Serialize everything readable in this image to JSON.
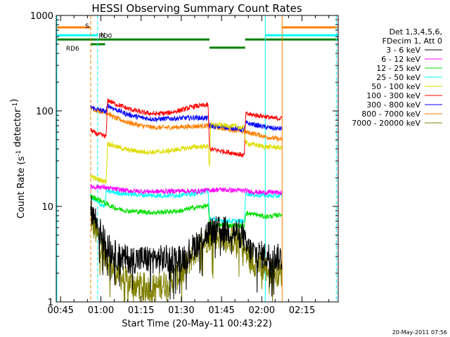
{
  "chart_data": {
    "type": "line",
    "title": "HESSI Observing Summary Count Rates",
    "xlabel": "Start Time (20-May-11 00:43:22)",
    "ylabel_parts": [
      "Count Rate (s",
      "-1",
      " detector",
      "-1",
      ")"
    ],
    "yscale": "log",
    "ylim": [
      1,
      1000
    ],
    "xlim_minutes": [
      43.37,
      148.5
    ],
    "x_ticks": [
      {
        "label": "00:45",
        "minute": 45
      },
      {
        "label": "01:00",
        "minute": 60
      },
      {
        "label": "01:15",
        "minute": 75
      },
      {
        "label": "01:30",
        "minute": 90
      },
      {
        "label": "01:45",
        "minute": 105
      },
      {
        "label": "02:00",
        "minute": 120
      },
      {
        "label": "02:15",
        "minute": 135
      }
    ],
    "y_ticks": [
      {
        "label": "1",
        "value": 1
      },
      {
        "label": "10",
        "value": 10
      },
      {
        "label": "100",
        "value": 100
      },
      {
        "label": "1000",
        "value": 1000
      }
    ],
    "grid": false,
    "legend_position": "right",
    "legend_header": [
      "Det 1,3,4,5,6,",
      "FDecim 1, Att 0"
    ],
    "series": [
      {
        "name": "3 - 6 keV",
        "color": "#000000",
        "x": [
          56.2,
          57.0,
          58.0,
          59.0,
          60.0,
          61.0,
          62.0,
          63.0,
          64.0,
          65.0,
          66.0,
          68.0,
          70.0,
          75.0,
          80.0,
          85.0,
          90.0,
          92.0,
          94.0,
          96.0,
          98.0,
          100.0,
          102.0,
          104.0,
          105.0,
          107.0,
          109.0,
          111.0,
          113.0,
          114.0,
          116.0,
          118.0,
          120.0,
          122.0,
          124.0,
          126.0,
          127.6
        ],
        "y": [
          9.5,
          8.5,
          7.2,
          6.2,
          5.2,
          4.6,
          4.1,
          3.7,
          3.4,
          3.2,
          3.0,
          2.9,
          2.8,
          2.8,
          2.8,
          2.8,
          2.9,
          3.1,
          3.6,
          4.2,
          4.8,
          5.3,
          5.6,
          5.6,
          5.7,
          5.6,
          5.4,
          5.3,
          5.1,
          3.8,
          3.4,
          3.2,
          3.1,
          3.0,
          3.0,
          2.9,
          2.9
        ]
      },
      {
        "name": "6 - 12 keV",
        "color": "#ff00ff",
        "x": [
          56.2,
          60.0,
          65.0,
          70.0,
          75.0,
          80.0,
          85.0,
          90.0,
          95.0,
          100.0,
          104.0,
          105.0,
          108.0,
          111.0,
          113.5,
          114.0,
          117.0,
          120.0,
          124.0,
          127.6
        ],
        "y": [
          16.0,
          16.0,
          15.2,
          14.6,
          14.4,
          14.3,
          14.4,
          14.6,
          14.4,
          14.8,
          15.0,
          15.0,
          14.8,
          14.7,
          14.6,
          14.6,
          14.2,
          14.0,
          14.1,
          13.8
        ]
      },
      {
        "name": "12 - 25 keV",
        "color": "#00dd00",
        "x": [
          56.2,
          57.0,
          60.0,
          63.0,
          66.0,
          70.0,
          75.0,
          80.0,
          85.0,
          90.0,
          94.0,
          98.0,
          100.0,
          100.5,
          103.0,
          106.0,
          110.0,
          113.5,
          114.0,
          118.0,
          121.0,
          124.0,
          127.6
        ],
        "y": [
          13.0,
          12.5,
          11.5,
          10.3,
          9.5,
          9.0,
          8.8,
          8.6,
          8.8,
          9.0,
          9.6,
          10.0,
          10.2,
          6.5,
          6.3,
          6.4,
          6.3,
          6.2,
          8.5,
          8.2,
          7.8,
          7.9,
          8.3
        ]
      },
      {
        "name": "25 - 50 keV",
        "color": "#00ffff",
        "x": [
          56.2,
          57.0,
          60.0,
          61.5,
          62.0,
          65.0,
          70.0,
          75.0,
          80.0,
          85.0,
          90.0,
          95.0,
          100.0,
          100.5,
          103.0,
          106.0,
          110.0,
          113.5,
          114.0,
          118.0,
          121.0,
          124.0,
          127.6
        ],
        "y": [
          13.0,
          12.0,
          10.5,
          10.0,
          14.5,
          14.0,
          13.5,
          13.2,
          13.0,
          13.0,
          13.2,
          13.6,
          14.5,
          7.5,
          7.2,
          7.1,
          7.0,
          7.0,
          13.8,
          13.0,
          13.2,
          12.8,
          13.0
        ]
      },
      {
        "name": "50 - 100 keV",
        "color": "#dddd00",
        "x": [
          56.2,
          58.0,
          61.0,
          62.0,
          62.5,
          65.0,
          70.0,
          75.0,
          80.0,
          85.0,
          90.0,
          95.0,
          100.0,
          100.5,
          101.0,
          105.0,
          110.0,
          113.5,
          114.0,
          118.0,
          121.0,
          124.0,
          127.6
        ],
        "y": [
          21.0,
          19.5,
          18.5,
          18.0,
          46.0,
          43.0,
          39.0,
          37.5,
          37.0,
          38.0,
          40.0,
          42.0,
          42.5,
          25.0,
          72.0,
          71.0,
          69.0,
          66.0,
          46.0,
          44.0,
          42.0,
          42.0,
          41.0
        ]
      },
      {
        "name": "100 - 300 keV",
        "color": "#ff0000",
        "x": [
          56.2,
          58.0,
          61.0,
          62.0,
          62.5,
          65.0,
          70.0,
          75.0,
          80.0,
          85.0,
          90.0,
          95.0,
          100.0,
          100.5,
          105.0,
          110.0,
          113.5,
          114.0,
          118.0,
          121.0,
          124.0,
          127.6
        ],
        "y": [
          63.0,
          58.0,
          55.0,
          54.0,
          130.0,
          120.0,
          106.0,
          97.0,
          93.0,
          95.0,
          102.0,
          112.0,
          115.0,
          40.0,
          38.0,
          36.0,
          34.0,
          93.0,
          90.0,
          88.0,
          84.0,
          83.0
        ]
      },
      {
        "name": "300 - 800 keV",
        "color": "#0000ff",
        "x": [
          56.2,
          58.0,
          61.0,
          62.0,
          62.5,
          65.0,
          70.0,
          75.0,
          80.0,
          85.0,
          90.0,
          95.0,
          100.0,
          100.5,
          105.0,
          110.0,
          113.5,
          114.0,
          118.0,
          121.0,
          124.0,
          127.6
        ],
        "y": [
          110.0,
          105.0,
          100.0,
          98.0,
          115.0,
          105.0,
          92.0,
          85.0,
          82.0,
          83.0,
          84.0,
          85.0,
          84.0,
          70.0,
          68.0,
          66.0,
          63.0,
          75.0,
          71.0,
          68.0,
          66.0,
          65.0
        ]
      },
      {
        "name": "800 - 7000 keV",
        "color": "#ff8000",
        "x": [
          56.2,
          58.0,
          61.0,
          62.0,
          62.5,
          65.0,
          70.0,
          75.0,
          80.0,
          85.0,
          90.0,
          95.0,
          100.0,
          100.5,
          105.0,
          110.0,
          113.5,
          114.0,
          118.0,
          121.0,
          124.0,
          127.6
        ],
        "y": [
          108.0,
          103.0,
          98.0,
          96.0,
          95.0,
          85.0,
          76.0,
          70.0,
          67.0,
          67.0,
          68.0,
          69.0,
          70.0,
          69.0,
          66.0,
          63.0,
          60.0,
          60.0,
          57.0,
          54.0,
          52.0,
          50.0
        ]
      },
      {
        "name": "7000 - 20000 keV",
        "color": "#808000",
        "x": [
          56.2,
          57.0,
          58.0,
          59.0,
          60.0,
          61.0,
          62.0,
          63.0,
          64.0,
          66.0,
          68.0,
          70.0,
          75.0,
          80.0,
          85.0,
          90.0,
          92.0,
          94.0,
          96.0,
          98.0,
          100.0,
          102.0,
          104.0,
          105.0,
          107.0,
          109.0,
          111.0,
          113.0,
          114.0,
          116.0,
          118.0,
          120.0,
          122.0,
          124.0,
          127.6
        ],
        "y": [
          7.5,
          6.5,
          5.5,
          4.7,
          4.0,
          3.4,
          3.0,
          2.6,
          2.3,
          2.0,
          1.8,
          1.6,
          1.45,
          1.4,
          1.6,
          2.0,
          2.4,
          3.0,
          3.6,
          4.2,
          4.7,
          5.0,
          5.0,
          5.0,
          4.9,
          4.6,
          4.3,
          4.0,
          3.2,
          2.8,
          2.5,
          2.3,
          2.2,
          2.1,
          2.0
        ]
      }
    ],
    "markers": [
      {
        "kind": "vline",
        "color": "#ff8000",
        "dash": true,
        "minute": 56.2
      },
      {
        "kind": "vline",
        "color": "#00ffff",
        "dash": true,
        "minute": 58.8
      },
      {
        "kind": "vline",
        "color": "#00ffff",
        "dash": false,
        "minute": 43.6
      },
      {
        "kind": "vline",
        "color": "#00ffff",
        "dash": false,
        "minute": 121.3
      },
      {
        "kind": "vline",
        "color": "#ff8000",
        "dash": false,
        "minute": 127.6
      },
      {
        "kind": "vline",
        "color": "#00ffff",
        "dash": true,
        "minute": 147.8
      }
    ],
    "bars": [
      {
        "color": "#ff8000",
        "label": "S",
        "y": 750,
        "segments": [
          [
            43.4,
            56.2
          ],
          [
            127.6,
            148.4
          ]
        ]
      },
      {
        "color": "#00ffff",
        "label": "N",
        "y": 620,
        "segments": [
          [
            43.4,
            58.8
          ],
          [
            121.3,
            148.4
          ]
        ]
      },
      {
        "color": "#008000",
        "label": "RD0",
        "y": 560,
        "segments": [
          [
            43.4,
            100.5
          ],
          [
            100.5,
            113.8
          ],
          [
            113.8,
            148.4
          ]
        ],
        "levels": [
          560,
          460,
          560
        ]
      },
      {
        "color": "#008000",
        "label": "RD6",
        "y": 500,
        "segments": [
          [
            56.2,
            61.6
          ]
        ]
      }
    ]
  },
  "footer": {
    "date_stamp": "20-May-2011 07:56"
  }
}
